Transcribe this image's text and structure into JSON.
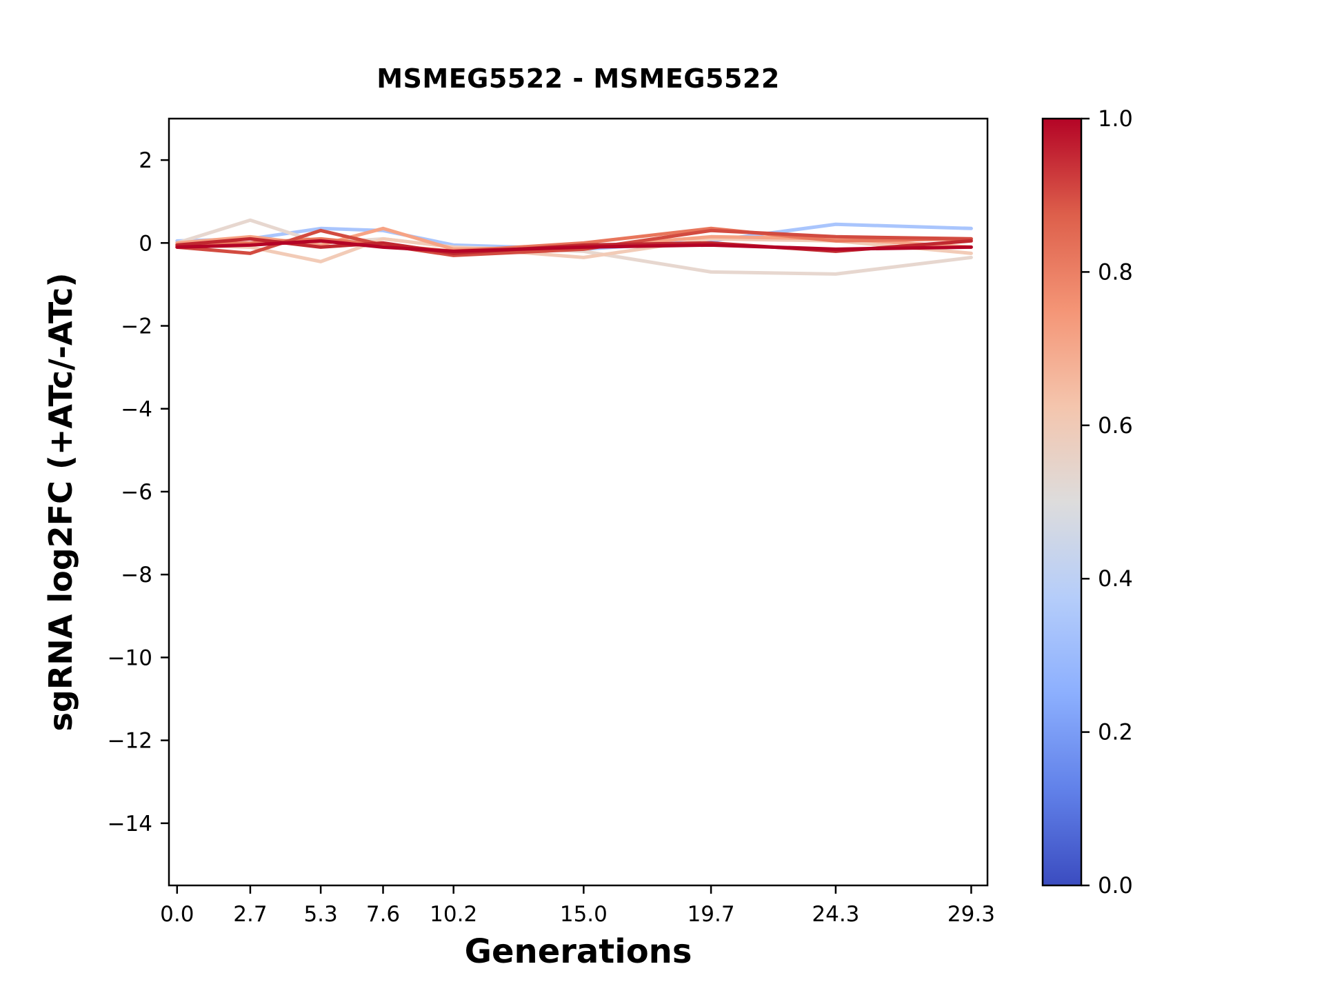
{
  "chart_data": {
    "type": "line",
    "title": "MSMEG5522 - MSMEG5522",
    "xlabel": "Generations",
    "ylabel": "sgRNA log2FC (+ATc/-ATc)",
    "x": [
      0.0,
      2.7,
      5.3,
      7.6,
      10.2,
      15.0,
      19.7,
      24.3,
      29.3
    ],
    "xlim": [
      -0.3,
      29.9
    ],
    "ylim": [
      -15.5,
      3.0
    ],
    "xticks": [
      "0.0",
      "2.7",
      "5.3",
      "7.6",
      "10.2",
      "15.0",
      "19.7",
      "24.3",
      "29.3"
    ],
    "xtick_values": [
      0.0,
      2.7,
      5.3,
      7.6,
      10.2,
      15.0,
      19.7,
      24.3,
      29.3
    ],
    "yticks": [
      "2",
      "0",
      "−2",
      "−4",
      "−6",
      "−8",
      "−10",
      "−12",
      "−14"
    ],
    "ytick_values": [
      2,
      0,
      -2,
      -4,
      -6,
      -8,
      -10,
      -12,
      -14
    ],
    "grid": false,
    "legend": "none",
    "colormap": "coolwarm",
    "series": [
      {
        "colormap_value": 0.4,
        "color": "#a9c5fd",
        "values": [
          0.05,
          0.1,
          0.35,
          0.3,
          -0.05,
          -0.15,
          0.05,
          0.45,
          0.35
        ]
      },
      {
        "colormap_value": 0.55,
        "color": "#e7d7cf",
        "values": [
          0.0,
          0.55,
          0.0,
          0.1,
          -0.1,
          -0.2,
          -0.7,
          -0.75,
          -0.35
        ]
      },
      {
        "colormap_value": 0.62,
        "color": "#f2cbb7",
        "values": [
          -0.05,
          -0.1,
          -0.45,
          0.1,
          -0.1,
          -0.35,
          0.1,
          0.05,
          -0.25
        ]
      },
      {
        "colormap_value": 0.75,
        "color": "#f6a385",
        "values": [
          0.0,
          0.15,
          -0.05,
          0.35,
          -0.15,
          -0.1,
          0.15,
          0.1,
          -0.1
        ]
      },
      {
        "colormap_value": 0.85,
        "color": "#e8765c",
        "values": [
          -0.05,
          0.0,
          0.1,
          -0.05,
          -0.2,
          0.0,
          0.35,
          0.05,
          0.1
        ]
      },
      {
        "colormap_value": 0.92,
        "color": "#d24b40",
        "values": [
          -0.1,
          -0.25,
          0.3,
          -0.05,
          -0.3,
          -0.15,
          0.3,
          0.15,
          0.1
        ]
      },
      {
        "colormap_value": 0.97,
        "color": "#c0282f",
        "values": [
          -0.05,
          0.1,
          -0.1,
          0.0,
          -0.25,
          -0.05,
          0.0,
          -0.2,
          0.05
        ]
      },
      {
        "colormap_value": 1.0,
        "color": "#b40426",
        "values": [
          -0.1,
          -0.05,
          0.05,
          -0.1,
          -0.2,
          -0.1,
          -0.05,
          -0.15,
          -0.1
        ]
      }
    ],
    "colorbar": {
      "ticks": [
        "0.0",
        "0.2",
        "0.4",
        "0.6",
        "0.8",
        "1.0"
      ],
      "tick_values": [
        0.0,
        0.2,
        0.4,
        0.6,
        0.8,
        1.0
      ],
      "gradient": [
        {
          "pos": 0.0,
          "color": "#3b4cc0"
        },
        {
          "pos": 0.125,
          "color": "#6181e9"
        },
        {
          "pos": 0.25,
          "color": "#8caffe"
        },
        {
          "pos": 0.375,
          "color": "#b5cdfa"
        },
        {
          "pos": 0.5,
          "color": "#dddcdc"
        },
        {
          "pos": 0.625,
          "color": "#f4c5ad"
        },
        {
          "pos": 0.75,
          "color": "#f49576"
        },
        {
          "pos": 0.875,
          "color": "#dd5f4b"
        },
        {
          "pos": 1.0,
          "color": "#b40426"
        }
      ]
    }
  }
}
